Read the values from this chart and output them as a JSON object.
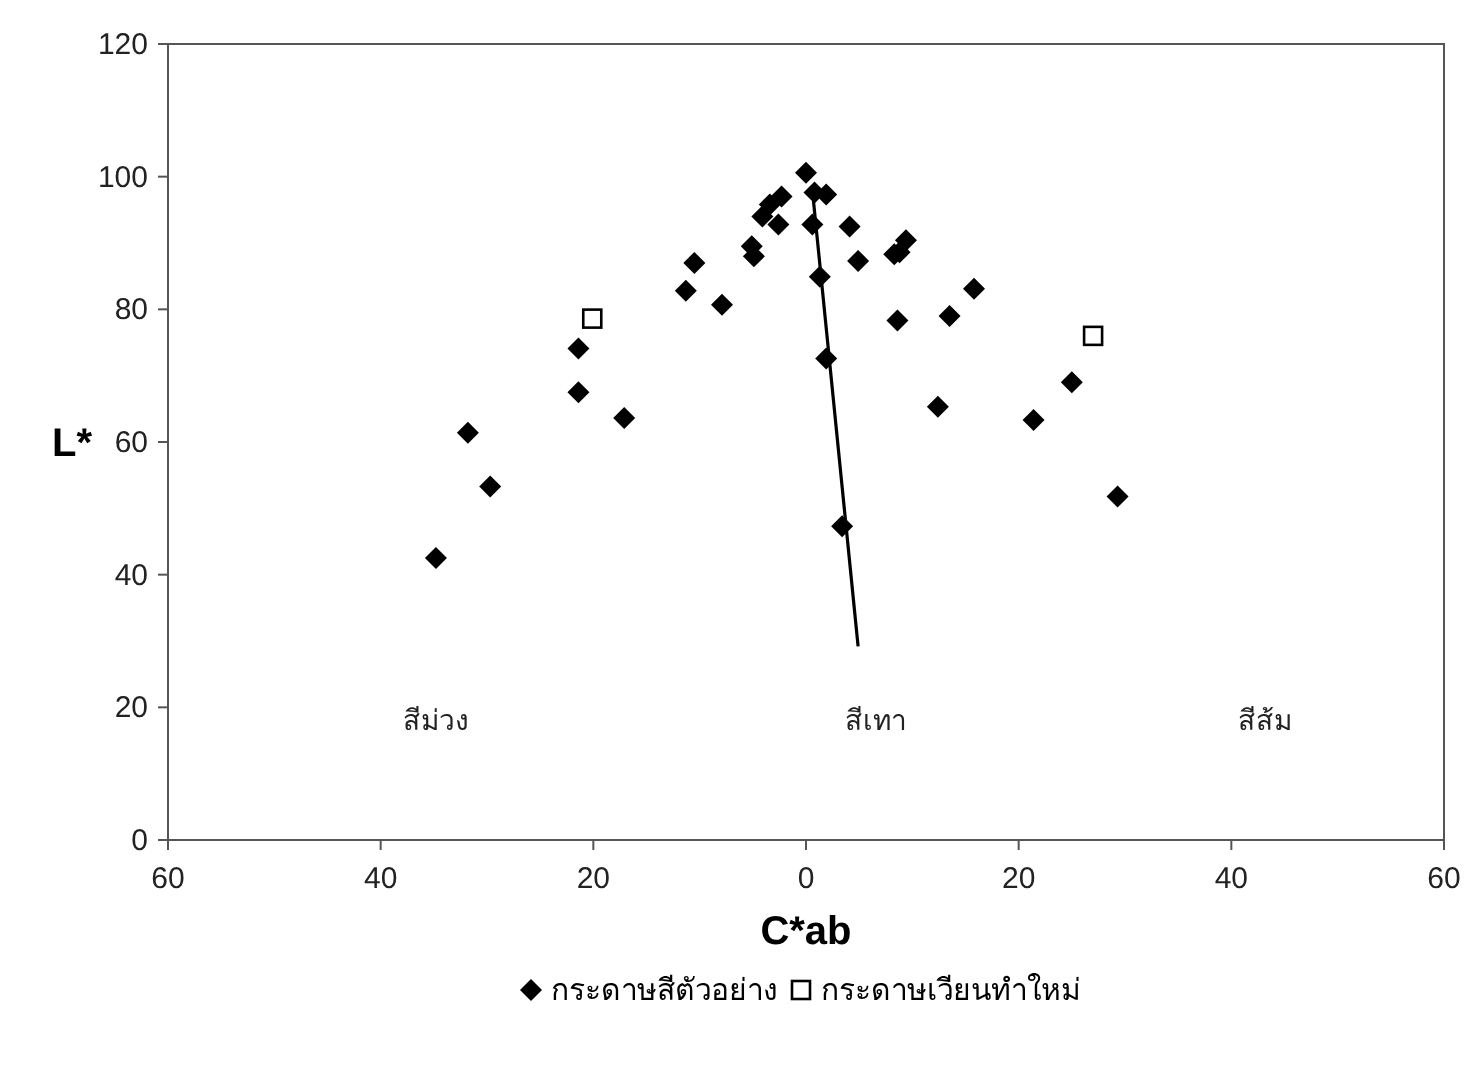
{
  "chart_data": {
    "type": "scatter",
    "xlabel": "C*ab",
    "ylabel": "L*",
    "xlim": [
      -60,
      60
    ],
    "ylim": [
      0,
      120
    ],
    "xticks": [
      {
        "value": -60,
        "label": "60"
      },
      {
        "value": -40,
        "label": "40"
      },
      {
        "value": -20,
        "label": "20"
      },
      0,
      20,
      40,
      60
    ],
    "yticks": [
      0,
      20,
      40,
      60,
      80,
      100,
      120
    ],
    "grid": false,
    "legend": "bottom",
    "series": [
      {
        "name": "กระดาษสีตัวอย่าง",
        "color": "#000000",
        "marker": "diamond",
        "x": [
          -34.8,
          -31.8,
          -29.7,
          -21.4,
          -21.4,
          -17.1,
          -11.3,
          -10.5,
          -7.9,
          -5.1,
          -4.9,
          -4.1,
          -3.4,
          -2.6,
          -2.3,
          0,
          0.8,
          1.9,
          0.6,
          4.1,
          4.9,
          1.3,
          1.9,
          3.4,
          8.6,
          8.3,
          8.8,
          9.4,
          13.5,
          15.8,
          12.4,
          21.4,
          25,
          29.3
        ],
        "values": [
          42.5,
          61.4,
          53.3,
          67.5,
          74.1,
          63.6,
          82.8,
          87,
          80.7,
          89.5,
          88,
          94,
          95.8,
          92.8,
          97,
          100.6,
          97.6,
          97.3,
          92.8,
          92.5,
          87.3,
          84.9,
          72.6,
          47.3,
          78.3,
          88.3,
          88.6,
          90.4,
          79,
          83.1,
          65.3,
          63.3,
          69,
          51.8
        ]
      },
      {
        "name": "กระดาษเวียนทำใหม่",
        "color": "#000000",
        "marker": "square",
        "x": [
          -20.1,
          27
        ],
        "values": [
          78.6,
          76
        ]
      },
      {
        "type": "line",
        "color": "#000000",
        "marker": "none",
        "x": [
          0.7,
          4.9
        ],
        "values": [
          96.4,
          29.2
        ]
      }
    ],
    "annotations": [
      "สีม่วง",
      "สีเทา",
      "สีส้ม"
    ]
  }
}
